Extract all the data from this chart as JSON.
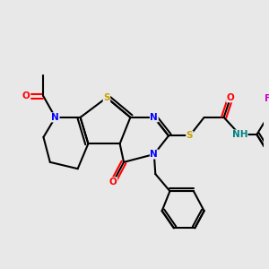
{
  "bg_color": "#e8e8e8",
  "bond_color": "#000000",
  "bond_width": 1.5,
  "atom_colors": {
    "S": "#c8a000",
    "N": "#0000ff",
    "O": "#ff0000",
    "F": "#cc00cc",
    "H": "#008080",
    "C": "#000000"
  },
  "font_size": 7.5,
  "fig_size": [
    3.0,
    3.0
  ],
  "dpi": 100
}
